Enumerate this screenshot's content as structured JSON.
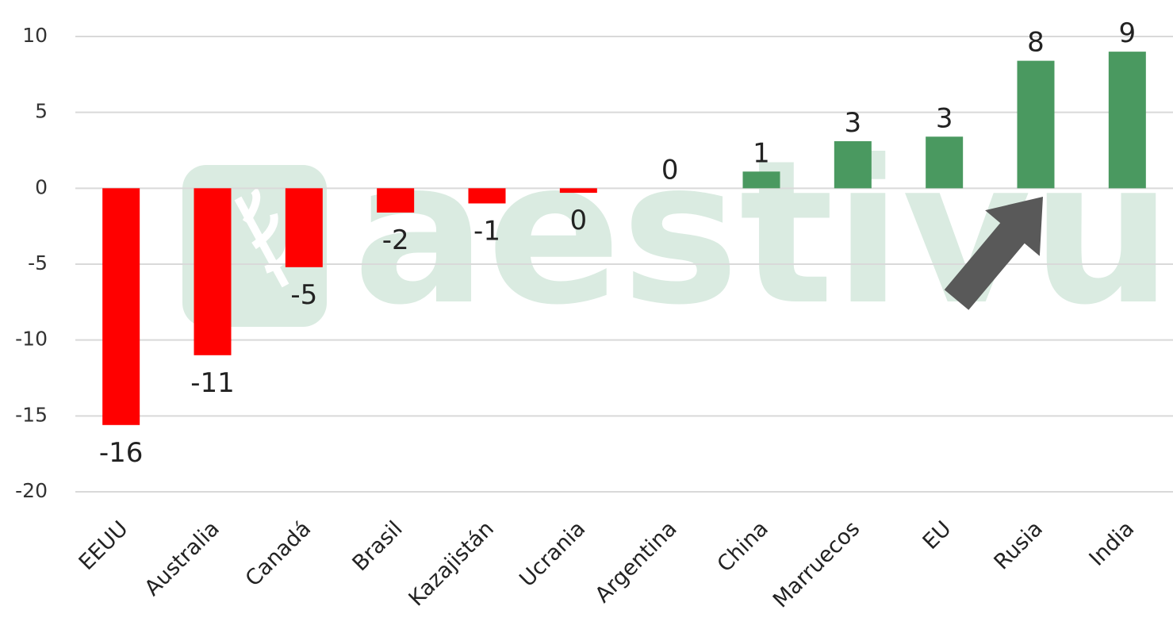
{
  "chart_data": {
    "type": "bar",
    "watermark": "aestivum",
    "categories": [
      "EEUU",
      "Australia",
      "Canadá",
      "Brasil",
      "Kazajistán",
      "Ucrania",
      "Argentina",
      "China",
      "Marruecos",
      "EU",
      "Rusia",
      "India"
    ],
    "values": [
      -15.6,
      -11.0,
      -5.2,
      -1.6,
      -1.0,
      -0.3,
      0,
      1.1,
      3.1,
      3.4,
      8.4,
      9.0
    ],
    "value_labels": [
      "-16",
      "-11",
      "-5",
      "-2",
      "-1",
      "0",
      "0",
      "1",
      "3",
      "3",
      "8",
      "9"
    ],
    "color_negative": "#ff0000",
    "color_positive": "#4a9960",
    "ylim": [
      -20,
      10
    ],
    "yticks": [
      -20,
      -15,
      -10,
      -5,
      0,
      5,
      10
    ],
    "grid": true
  }
}
